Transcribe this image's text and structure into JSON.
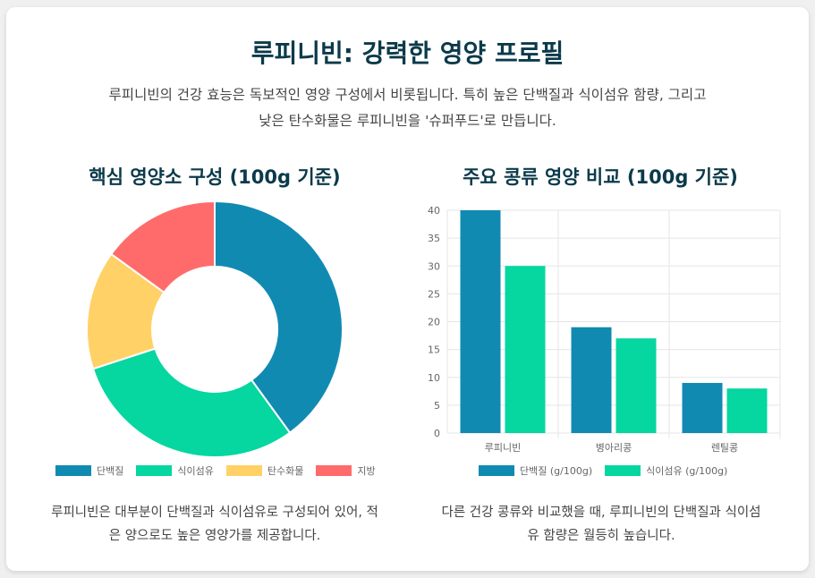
{
  "header": {
    "title": "루피니빈: 강력한 영양 프로필",
    "intro_line1": "루피니빈의 건강 효능은 독보적인 영양 구성에서 비롯됩니다. 특히 높은 단백질과 식이섬유 함량, 그리고",
    "intro_line2": "낮은 탄수화물은 루피니빈을 '슈퍼푸드'로 만듭니다."
  },
  "left_section": {
    "title": "핵심 영양소 구성 (100g 기준)",
    "caption_line1": "루피니빈은 대부분이 단백질과 식이섬유로 구성되어 있어, 적",
    "caption_line2": "은 양으로도 높은 영양가를 제공합니다."
  },
  "right_section": {
    "title": "주요 콩류 영양 비교 (100g 기준)",
    "caption_line1": "다른 건강 콩류와 비교했을 때, 루피니빈의 단백질과 식이섬",
    "caption_line2": "유 함량은 월등히 높습니다."
  },
  "chart_data": [
    {
      "type": "pie",
      "variant": "doughnut",
      "labels": [
        "단백질",
        "식이섬유",
        "탄수화물",
        "지방"
      ],
      "values": [
        40,
        30,
        15,
        15
      ],
      "colors": [
        "#118ab2",
        "#06d6a0",
        "#ffd166",
        "#ff6b6b"
      ],
      "legend": "bottom"
    },
    {
      "type": "bar",
      "categories": [
        "루피니빈",
        "병아리콩",
        "렌틸콩"
      ],
      "series": [
        {
          "name": "단백질 (g/100g)",
          "values": [
            40,
            19,
            9
          ],
          "color": "#118ab2"
        },
        {
          "name": "식이섬유 (g/100g)",
          "values": [
            30,
            17,
            8
          ],
          "color": "#06d6a0"
        }
      ],
      "ylim": [
        0,
        40
      ],
      "yticks": [
        0,
        5,
        10,
        15,
        20,
        25,
        30,
        35,
        40
      ],
      "grid": true,
      "legend": "bottom"
    }
  ]
}
